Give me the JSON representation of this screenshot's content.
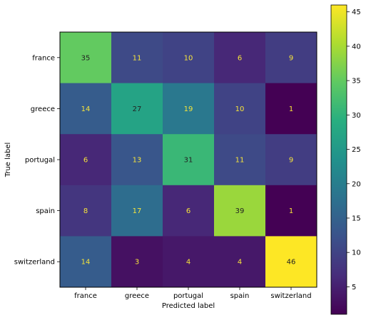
{
  "chart_data": {
    "type": "heatmap",
    "xlabel": "Predicted label",
    "ylabel": "True label",
    "x_categories": [
      "france",
      "greece",
      "portugal",
      "spain",
      "switzerland"
    ],
    "y_categories": [
      "france",
      "greece",
      "portugal",
      "spain",
      "switzerland"
    ],
    "values": [
      [
        35,
        11,
        10,
        6,
        9
      ],
      [
        14,
        27,
        19,
        10,
        1
      ],
      [
        6,
        13,
        31,
        11,
        9
      ],
      [
        8,
        17,
        6,
        39,
        1
      ],
      [
        14,
        3,
        4,
        4,
        46
      ]
    ],
    "colormap": "viridis",
    "color_range": [
      1,
      46
    ],
    "colorbar_ticks": [
      5,
      10,
      15,
      20,
      25,
      30,
      35,
      40,
      45
    ],
    "grid": false,
    "colorbar": "right",
    "text_colors": {
      "dark_cell": "#f7e53b",
      "light_cell": "#222222"
    }
  }
}
